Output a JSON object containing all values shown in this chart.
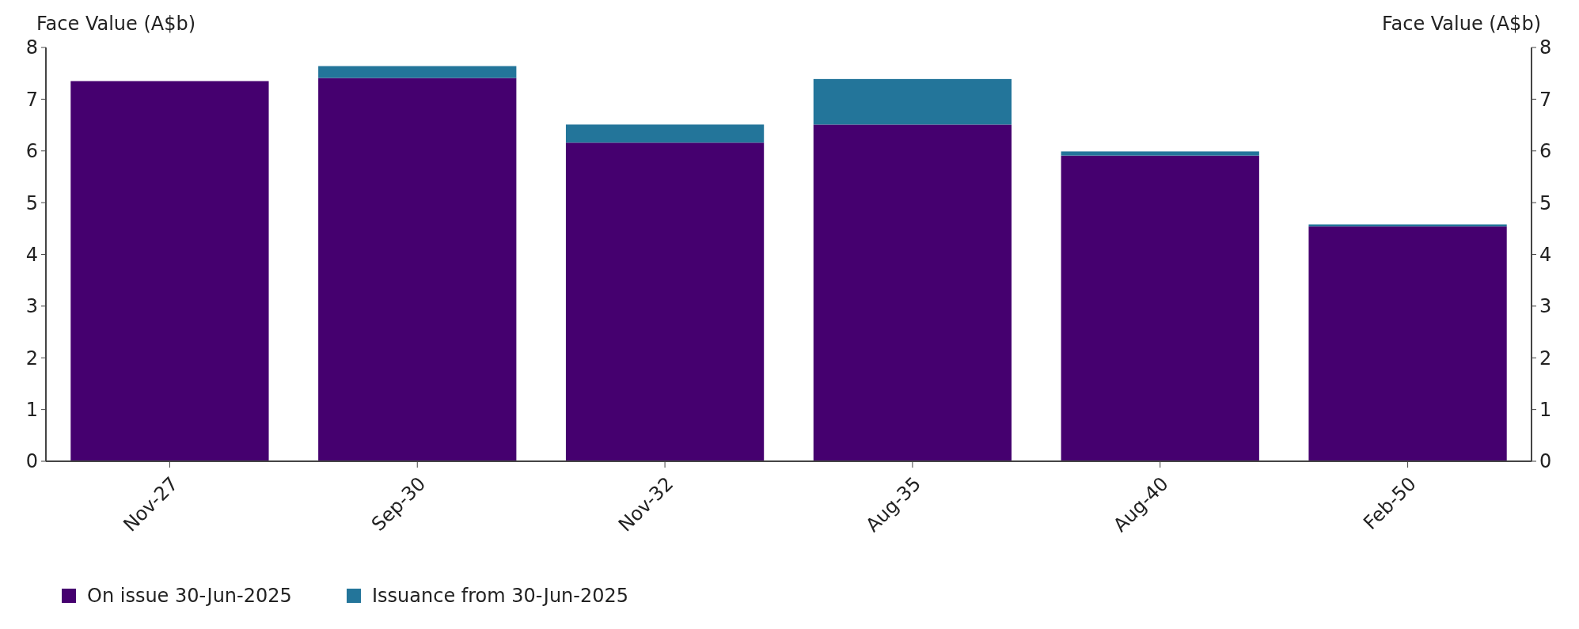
{
  "chart_data": {
    "type": "bar",
    "stacked": true,
    "ylabel": "Face Value (A$b)",
    "y2label": "Face Value (A$b)",
    "categories": [
      "Nov-27",
      "Sep-30",
      "Nov-32",
      "Aug-35",
      "Aug-40",
      "Feb-50"
    ],
    "series": [
      {
        "name": "On issue 30-Jun-2025",
        "color": "#45006f",
        "values": [
          7.35,
          7.41,
          6.16,
          6.51,
          5.91,
          4.54
        ]
      },
      {
        "name": "Issuance from 30-Jun-2025",
        "color": "#23759a",
        "values": [
          0,
          0.23,
          0.35,
          0.88,
          0.08,
          0.04
        ]
      }
    ],
    "ylim": [
      0,
      8
    ],
    "yticks": [
      0,
      1,
      2,
      3,
      4,
      5,
      6,
      7,
      8
    ],
    "y2lim": [
      0,
      8
    ],
    "y2ticks": [
      0,
      1,
      2,
      3,
      4,
      5,
      6,
      7,
      8
    ],
    "grid": false,
    "legend": "bottom left"
  }
}
